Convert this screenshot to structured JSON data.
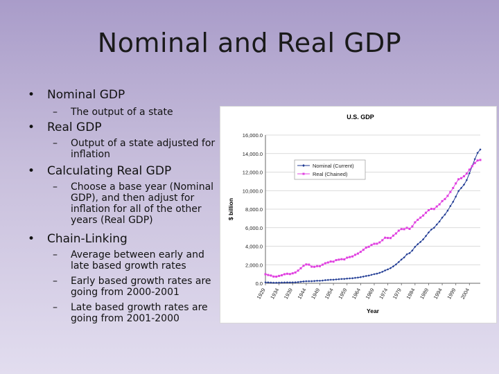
{
  "slide": {
    "title": "Nominal and Real GDP",
    "bullets": [
      {
        "label": "Nominal GDP",
        "subs": [
          "The output of a state"
        ]
      },
      {
        "label": "Real GDP",
        "subs": [
          "Output of a state adjusted for inflation"
        ]
      },
      {
        "label": "Calculating Real GDP",
        "subs": [
          "Choose a base year (Nominal GDP), and then adjust for inflation for all of the other years (Real GDP)"
        ]
      },
      {
        "label": "Chain-Linking",
        "subs": [
          "Average between early and late based growth rates",
          "Early based growth rates are going from 2000-2001",
          "Late based growth rates are going from 2001-2000"
        ]
      }
    ],
    "bullet_symbol": "•",
    "dash_symbol": "–"
  },
  "chart_data": {
    "type": "line",
    "title": "U.S. GDP",
    "xlabel": "Year",
    "ylabel": "$ billion",
    "ylim": [
      0,
      16000
    ],
    "xlim": [
      1929,
      2008
    ],
    "y_ticks": [
      "0.0",
      "2,000.0",
      "4,000.0",
      "6,000.0",
      "8,000.0",
      "10,000.0",
      "12,000.0",
      "14,000.0",
      "16,000.0"
    ],
    "x_ticks": [
      "1929",
      "1934",
      "1939",
      "1944",
      "1949",
      "1954",
      "1959",
      "1964",
      "1969",
      "1974",
      "1979",
      "1984",
      "1989",
      "1994",
      "1999",
      "2004"
    ],
    "legend_position": "top-left",
    "series": [
      {
        "name": "Nominal (Current)",
        "color": "#1f3a93",
        "x": [
          1929,
          1930,
          1931,
          1932,
          1933,
          1934,
          1935,
          1936,
          1937,
          1938,
          1939,
          1940,
          1941,
          1942,
          1943,
          1944,
          1945,
          1946,
          1947,
          1948,
          1949,
          1950,
          1951,
          1952,
          1953,
          1954,
          1955,
          1956,
          1957,
          1958,
          1959,
          1960,
          1961,
          1962,
          1963,
          1964,
          1965,
          1966,
          1967,
          1968,
          1969,
          1970,
          1971,
          1972,
          1973,
          1974,
          1975,
          1976,
          1977,
          1978,
          1979,
          1980,
          1981,
          1982,
          1983,
          1984,
          1985,
          1986,
          1987,
          1988,
          1989,
          1990,
          1991,
          1992,
          1993,
          1994,
          1995,
          1996,
          1997,
          1998,
          1999,
          2000,
          2001,
          2002,
          2003,
          2004,
          2005,
          2006,
          2007,
          2008
        ],
        "values": [
          103.6,
          91.2,
          76.5,
          58.7,
          56.4,
          66.0,
          73.3,
          83.8,
          91.9,
          86.1,
          92.2,
          101.4,
          126.7,
          161.9,
          198.6,
          219.8,
          223.0,
          222.2,
          244.1,
          269.1,
          267.2,
          293.7,
          339.3,
          358.3,
          379.4,
          380.4,
          414.8,
          437.5,
          461.1,
          467.2,
          506.6,
          526.4,
          544.8,
          585.7,
          617.8,
          663.6,
          719.1,
          787.7,
          832.4,
          909.8,
          984.4,
          1038.3,
          1126.8,
          1237.9,
          1382.3,
          1499.5,
          1637.7,
          1824.6,
          2030.1,
          2293.8,
          2562.2,
          2788.1,
          3126.8,
          3253.2,
          3534.6,
          3930.9,
          4217.5,
          4460.1,
          4736.4,
          5100.4,
          5482.1,
          5800.5,
          5992.1,
          6342.3,
          6667.4,
          7085.2,
          7414.7,
          7838.5,
          8332.4,
          8793.5,
          9353.5,
          9951.5,
          10286.2,
          10642.3,
          11142.1,
          11867.8,
          12638.4,
          13398.9,
          14077.6,
          14441.4
        ]
      },
      {
        "name": "Real (Chained)",
        "color": "#e040e0",
        "x": [
          1929,
          1930,
          1931,
          1932,
          1933,
          1934,
          1935,
          1936,
          1937,
          1938,
          1939,
          1940,
          1941,
          1942,
          1943,
          1944,
          1945,
          1946,
          1947,
          1948,
          1949,
          1950,
          1951,
          1952,
          1953,
          1954,
          1955,
          1956,
          1957,
          1958,
          1959,
          1960,
          1961,
          1962,
          1963,
          1964,
          1965,
          1966,
          1967,
          1968,
          1969,
          1970,
          1971,
          1972,
          1973,
          1974,
          1975,
          1976,
          1977,
          1978,
          1979,
          1980,
          1981,
          1982,
          1983,
          1984,
          1985,
          1986,
          1987,
          1988,
          1989,
          1990,
          1991,
          1992,
          1993,
          1994,
          1995,
          1996,
          1997,
          1998,
          1999,
          2000,
          2001,
          2002,
          2003,
          2004,
          2005,
          2006,
          2007,
          2008
        ],
        "values": [
          977,
          892,
          834,
          725,
          716,
          794,
          865,
          977,
          1027,
          993,
          1072,
          1166,
          1367,
          1619,
          1885,
          2034,
          2012,
          1793,
          1776,
          1854,
          1845,
          2006,
          2161,
          2244,
          2348,
          2334,
          2500,
          2550,
          2601,
          2578,
          2763,
          2831,
          2897,
          3072,
          3207,
          3392,
          3610,
          3845,
          3942,
          4133,
          4262,
          4270,
          4413,
          4647,
          4917,
          4890,
          4880,
          5141,
          5378,
          5678,
          5855,
          5839,
          5987,
          5871,
          6136,
          6577,
          6849,
          7087,
          7313,
          7614,
          7886,
          8034,
          8016,
          8288,
          8523,
          8871,
          9094,
          9434,
          9854,
          10284,
          10780,
          11226,
          11347,
          11553,
          11841,
          12264,
          12638,
          12976,
          13254,
          13312
        ]
      }
    ]
  }
}
